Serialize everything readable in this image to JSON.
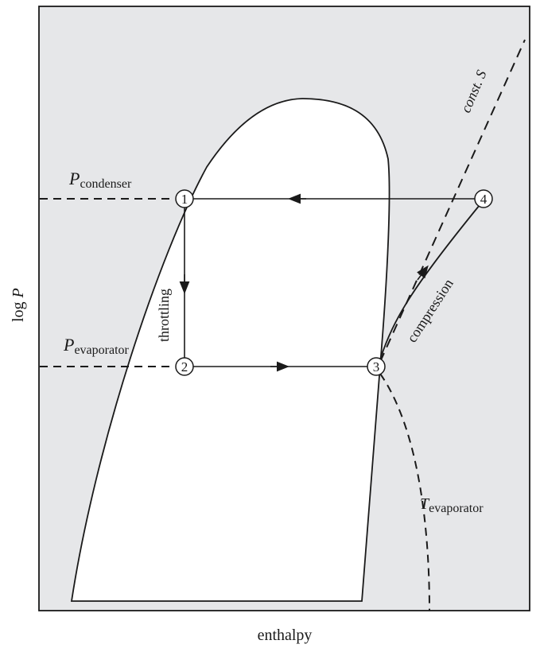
{
  "colors": {
    "background": "#e6e7e9",
    "dome_fill": "#ffffff",
    "ink": "#1a1a1a"
  },
  "labels": {
    "p_condenser_main": "P",
    "p_condenser_sub": "condenser",
    "p_evaporator_main": "P",
    "p_evaporator_sub": "evaporator",
    "t_evaporator_main": "T",
    "t_evaporator_sub": "evaporator",
    "const_s": "const. S",
    "throttling": "throttling",
    "compression": "compression",
    "y_axis_main": "log ",
    "y_axis_var": "P",
    "x_axis": "enthalpy"
  },
  "points": [
    "1",
    "2",
    "3",
    "4"
  ]
}
